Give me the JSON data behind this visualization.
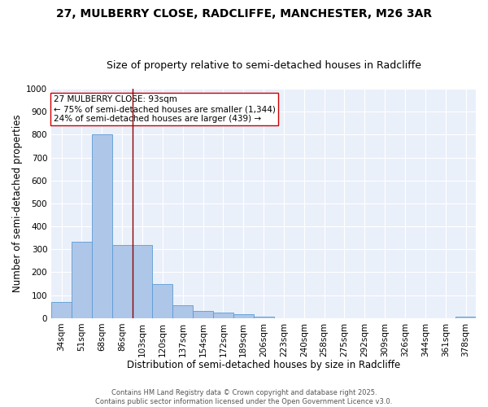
{
  "title_line1": "27, MULBERRY CLOSE, RADCLIFFE, MANCHESTER, M26 3AR",
  "title_line2": "Size of property relative to semi-detached houses in Radcliffe",
  "xlabel": "Distribution of semi-detached houses by size in Radcliffe",
  "ylabel": "Number of semi-detached properties",
  "categories": [
    "34sqm",
    "51sqm",
    "68sqm",
    "86sqm",
    "103sqm",
    "120sqm",
    "137sqm",
    "154sqm",
    "172sqm",
    "189sqm",
    "206sqm",
    "223sqm",
    "240sqm",
    "258sqm",
    "275sqm",
    "292sqm",
    "309sqm",
    "326sqm",
    "344sqm",
    "361sqm",
    "378sqm"
  ],
  "values": [
    70,
    332,
    800,
    318,
    318,
    150,
    57,
    32,
    25,
    18,
    8,
    0,
    0,
    0,
    0,
    0,
    0,
    0,
    0,
    0,
    8
  ],
  "bar_color": "#aec6e8",
  "bar_edge_color": "#5b9bd5",
  "vline_pos": 3.5,
  "vline_color": "#8b0000",
  "annotation_text": "27 MULBERRY CLOSE: 93sqm\n← 75% of semi-detached houses are smaller (1,344)\n24% of semi-detached houses are larger (439) →",
  "annotation_box_color": "#ffffff",
  "annotation_box_edge": "#cc0000",
  "ylim": [
    0,
    1000
  ],
  "yticks": [
    0,
    100,
    200,
    300,
    400,
    500,
    600,
    700,
    800,
    900,
    1000
  ],
  "background_color": "#eaf0fa",
  "grid_color": "#ffffff",
  "footer_line1": "Contains HM Land Registry data © Crown copyright and database right 2025.",
  "footer_line2": "Contains public sector information licensed under the Open Government Licence v3.0.",
  "title_fontsize": 10,
  "subtitle_fontsize": 9,
  "tick_fontsize": 7.5,
  "label_fontsize": 8.5,
  "annotation_fontsize": 7.5,
  "footer_fontsize": 6.0
}
